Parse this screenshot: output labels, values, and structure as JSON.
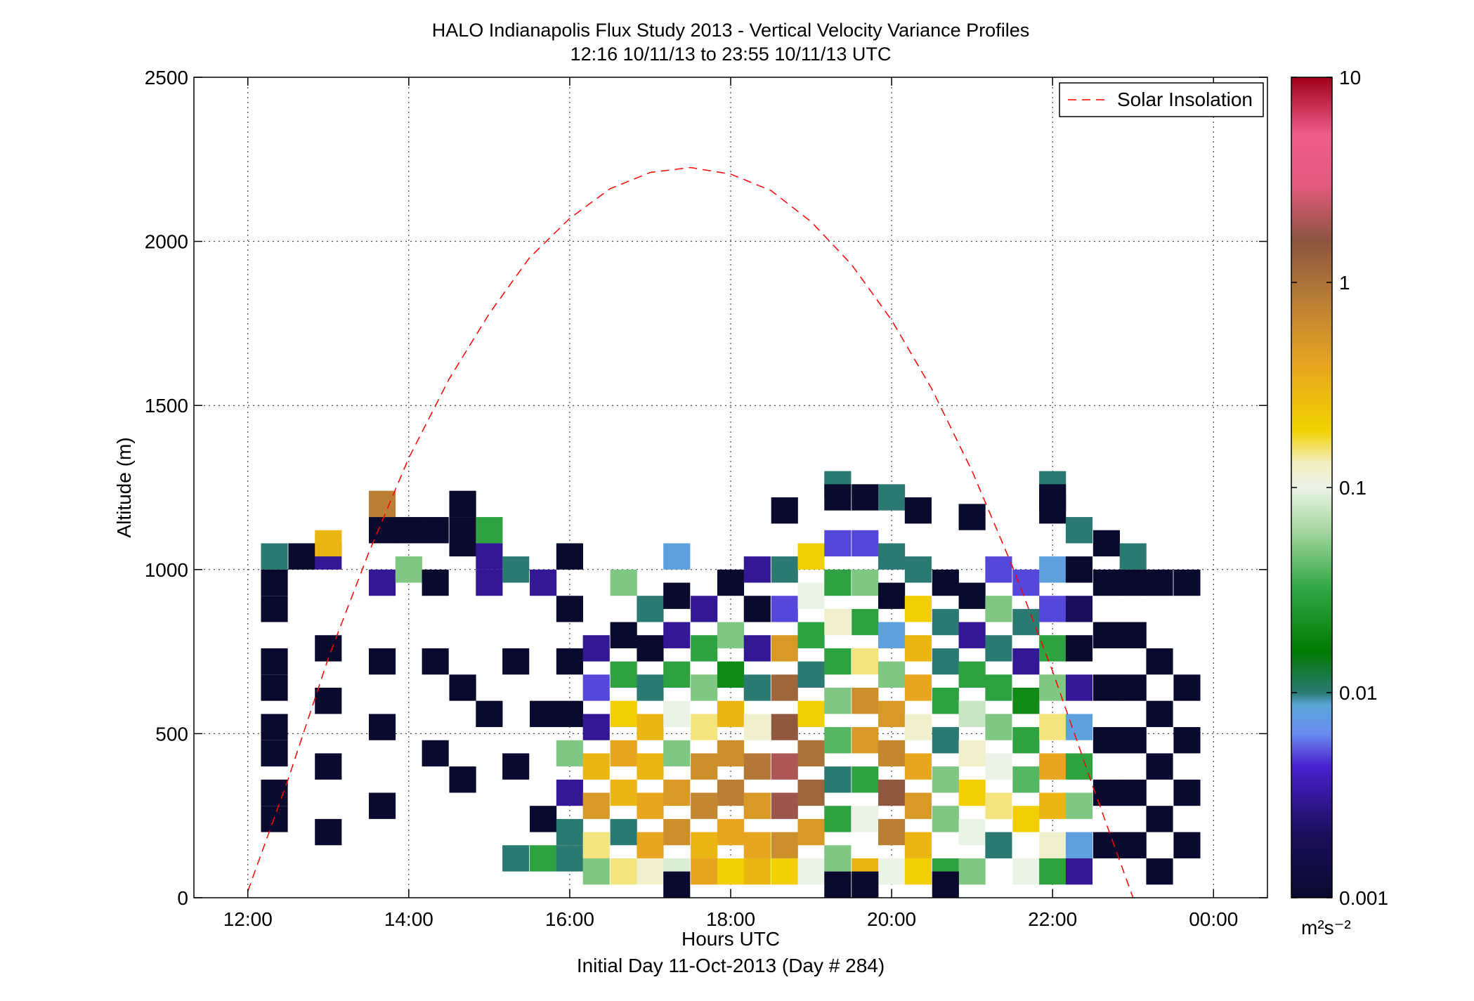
{
  "chart_data": {
    "type": "heatmap",
    "title": "HALO Indianapolis Flux Study 2013 - Vertical Velocity Variance Profiles",
    "subtitle": "12:16 10/11/13 to 23:55 10/11/13  UTC",
    "xlabel": "Hours UTC",
    "xlabel2": "Initial Day 11-Oct-2013 (Day # 284)",
    "ylabel": "Altitude (m)",
    "xlim": [
      11.33,
      24.67
    ],
    "ylim": [
      0,
      2500
    ],
    "x_ticks": [
      12,
      14,
      16,
      18,
      20,
      22,
      24
    ],
    "x_tick_labels": [
      "12:00",
      "14:00",
      "16:00",
      "18:00",
      "20:00",
      "22:00",
      "00:00"
    ],
    "y_ticks": [
      0,
      500,
      1000,
      1500,
      2000,
      2500
    ],
    "y_tick_labels": [
      "0",
      "500",
      "1000",
      "1500",
      "2000",
      "2500"
    ],
    "grid": true,
    "legend": {
      "position": "top-right",
      "entries": [
        "Solar Insolation"
      ]
    },
    "colorbar": {
      "scale": "log",
      "range": [
        0.001,
        10
      ],
      "ticks": [
        0.001,
        0.01,
        0.1,
        1,
        10
      ],
      "tick_labels": [
        "0.001",
        "0.01",
        "0.1",
        "1",
        "10"
      ],
      "units": "m²s⁻²"
    },
    "cell": {
      "dx_hours": 0.333,
      "dz_m": 80
    },
    "series": [
      {
        "name": "Solar Insolation",
        "type": "line",
        "style": "dashed",
        "color": "#ff0000",
        "x": [
          12.0,
          12.5,
          13.0,
          13.5,
          14.0,
          14.5,
          15.0,
          15.5,
          16.0,
          16.5,
          17.0,
          17.5,
          18.0,
          18.5,
          19.0,
          19.5,
          20.0,
          20.5,
          21.0,
          21.5,
          22.0,
          22.5,
          23.0
        ],
        "y": [
          20,
          360,
          730,
          1050,
          1340,
          1580,
          1780,
          1950,
          2070,
          2160,
          2210,
          2225,
          2205,
          2155,
          2060,
          1930,
          1760,
          1550,
          1300,
          1010,
          690,
          340,
          0
        ]
      }
    ],
    "cells": [
      [
        12.33,
        1040,
        0.01
      ],
      [
        12.67,
        1040,
        0.001
      ],
      [
        13.0,
        1040,
        0.003
      ],
      [
        13.67,
        1120,
        0.001
      ],
      [
        14.0,
        1120,
        0.001
      ],
      [
        14.33,
        1120,
        0.001
      ],
      [
        14.67,
        1120,
        0.001
      ],
      [
        13.67,
        1200,
        0.8
      ],
      [
        14.67,
        1200,
        0.001
      ],
      [
        13.0,
        1080,
        0.3
      ],
      [
        14.67,
        1080,
        0.001
      ],
      [
        15.0,
        1120,
        0.03
      ],
      [
        15.0,
        1040,
        0.003
      ],
      [
        16.0,
        1040,
        0.001
      ],
      [
        17.33,
        1040,
        0.008
      ],
      [
        19.33,
        1260,
        0.01
      ],
      [
        19.33,
        1220,
        0.001
      ],
      [
        19.67,
        1220,
        0.001
      ],
      [
        20.0,
        1220,
        0.01
      ],
      [
        18.67,
        1180,
        0.001
      ],
      [
        20.33,
        1180,
        0.001
      ],
      [
        21.0,
        1160,
        0.001
      ],
      [
        22.0,
        1260,
        0.01
      ],
      [
        22.0,
        1220,
        0.001
      ],
      [
        22.0,
        1180,
        0.001
      ],
      [
        22.33,
        1120,
        0.01
      ],
      [
        22.67,
        1080,
        0.001
      ],
      [
        23.0,
        1040,
        0.01
      ],
      [
        12.33,
        960,
        0.001
      ],
      [
        12.33,
        880,
        0.001
      ],
      [
        12.33,
        720,
        0.001
      ],
      [
        12.33,
        640,
        0.001
      ],
      [
        12.33,
        520,
        0.001
      ],
      [
        12.33,
        440,
        0.001
      ],
      [
        12.33,
        320,
        0.001
      ],
      [
        12.33,
        240,
        0.001
      ],
      [
        13.0,
        760,
        0.001
      ],
      [
        13.0,
        600,
        0.001
      ],
      [
        13.0,
        400,
        0.001
      ],
      [
        13.0,
        200,
        0.001
      ],
      [
        13.67,
        960,
        0.003
      ],
      [
        13.67,
        720,
        0.001
      ],
      [
        13.67,
        520,
        0.001
      ],
      [
        13.67,
        280,
        0.001
      ],
      [
        14.0,
        1000,
        0.05
      ],
      [
        14.33,
        960,
        0.001
      ],
      [
        14.33,
        720,
        0.001
      ],
      [
        14.33,
        440,
        0.001
      ],
      [
        14.67,
        640,
        0.001
      ],
      [
        14.67,
        360,
        0.001
      ],
      [
        15.0,
        960,
        0.003
      ],
      [
        15.0,
        560,
        0.001
      ],
      [
        15.33,
        1000,
        0.01
      ],
      [
        15.33,
        720,
        0.001
      ],
      [
        15.33,
        400,
        0.001
      ],
      [
        15.33,
        120,
        0.01
      ],
      [
        15.67,
        960,
        0.003
      ],
      [
        15.67,
        560,
        0.001
      ],
      [
        15.67,
        240,
        0.001
      ],
      [
        15.67,
        120,
        0.03
      ],
      [
        16.0,
        880,
        0.001
      ],
      [
        16.0,
        720,
        0.001
      ],
      [
        16.0,
        560,
        0.001
      ],
      [
        16.0,
        440,
        0.05
      ],
      [
        16.0,
        320,
        0.003
      ],
      [
        16.0,
        200,
        0.01
      ],
      [
        16.0,
        120,
        0.01
      ],
      [
        16.33,
        760,
        0.003
      ],
      [
        16.33,
        640,
        0.005
      ],
      [
        16.33,
        520,
        0.003
      ],
      [
        16.33,
        400,
        0.3
      ],
      [
        16.33,
        280,
        0.5
      ],
      [
        16.33,
        160,
        0.15
      ],
      [
        16.33,
        80,
        0.05
      ],
      [
        16.67,
        960,
        0.05
      ],
      [
        16.67,
        800,
        0.001
      ],
      [
        16.67,
        680,
        0.03
      ],
      [
        16.67,
        560,
        0.2
      ],
      [
        16.67,
        440,
        0.4
      ],
      [
        16.67,
        320,
        0.3
      ],
      [
        16.67,
        200,
        0.01
      ],
      [
        16.67,
        80,
        0.15
      ],
      [
        17.0,
        880,
        0.01
      ],
      [
        17.0,
        760,
        0.001
      ],
      [
        17.0,
        640,
        0.01
      ],
      [
        17.0,
        520,
        0.3
      ],
      [
        17.0,
        400,
        0.3
      ],
      [
        17.0,
        280,
        0.4
      ],
      [
        17.0,
        160,
        0.4
      ],
      [
        17.0,
        80,
        0.12
      ],
      [
        17.33,
        920,
        0.001
      ],
      [
        17.33,
        800,
        0.003
      ],
      [
        17.33,
        680,
        0.03
      ],
      [
        17.33,
        560,
        0.1
      ],
      [
        17.33,
        440,
        0.05
      ],
      [
        17.33,
        320,
        0.5
      ],
      [
        17.33,
        200,
        0.6
      ],
      [
        17.33,
        80,
        0.09
      ],
      [
        17.67,
        880,
        0.003
      ],
      [
        17.67,
        760,
        0.03
      ],
      [
        17.67,
        640,
        0.05
      ],
      [
        17.67,
        520,
        0.15
      ],
      [
        17.67,
        400,
        0.6
      ],
      [
        17.67,
        280,
        0.7
      ],
      [
        17.67,
        160,
        0.3
      ],
      [
        17.67,
        80,
        0.4
      ],
      [
        18.0,
        960,
        0.001
      ],
      [
        18.0,
        800,
        0.05
      ],
      [
        18.0,
        680,
        0.02
      ],
      [
        18.0,
        560,
        0.3
      ],
      [
        18.0,
        440,
        0.6
      ],
      [
        18.0,
        320,
        0.8
      ],
      [
        18.0,
        200,
        0.4
      ],
      [
        18.0,
        80,
        0.2
      ],
      [
        18.33,
        1000,
        0.003
      ],
      [
        18.33,
        880,
        0.001
      ],
      [
        18.33,
        760,
        0.003
      ],
      [
        18.33,
        640,
        0.01
      ],
      [
        18.33,
        520,
        0.12
      ],
      [
        18.33,
        400,
        0.9
      ],
      [
        18.33,
        280,
        0.5
      ],
      [
        18.33,
        160,
        0.4
      ],
      [
        18.33,
        80,
        0.3
      ],
      [
        18.67,
        1000,
        0.01
      ],
      [
        18.67,
        880,
        0.005
      ],
      [
        18.67,
        760,
        0.5
      ],
      [
        18.67,
        640,
        1.2
      ],
      [
        18.67,
        520,
        1.5
      ],
      [
        18.67,
        400,
        2.0
      ],
      [
        18.67,
        280,
        1.8
      ],
      [
        18.67,
        160,
        0.6
      ],
      [
        18.67,
        80,
        0.2
      ],
      [
        19.0,
        1040,
        0.2
      ],
      [
        19.0,
        920,
        0.1
      ],
      [
        19.0,
        800,
        0.03
      ],
      [
        19.0,
        680,
        0.01
      ],
      [
        19.0,
        560,
        0.2
      ],
      [
        19.0,
        440,
        1.0
      ],
      [
        19.0,
        320,
        1.2
      ],
      [
        19.0,
        200,
        0.5
      ],
      [
        19.0,
        80,
        0.1
      ],
      [
        19.33,
        1080,
        0.005
      ],
      [
        19.33,
        960,
        0.03
      ],
      [
        19.33,
        840,
        0.12
      ],
      [
        19.33,
        720,
        0.03
      ],
      [
        19.33,
        600,
        0.05
      ],
      [
        19.33,
        480,
        0.04
      ],
      [
        19.33,
        360,
        0.01
      ],
      [
        19.33,
        240,
        0.03
      ],
      [
        19.33,
        120,
        0.05
      ],
      [
        19.67,
        1080,
        0.005
      ],
      [
        19.67,
        960,
        0.05
      ],
      [
        19.67,
        840,
        0.03
      ],
      [
        19.67,
        720,
        0.15
      ],
      [
        19.67,
        600,
        0.6
      ],
      [
        19.67,
        480,
        0.5
      ],
      [
        19.67,
        360,
        0.03
      ],
      [
        19.67,
        240,
        0.1
      ],
      [
        19.67,
        80,
        0.3
      ],
      [
        20.0,
        1040,
        0.01
      ],
      [
        20.0,
        920,
        0.001
      ],
      [
        20.0,
        800,
        0.008
      ],
      [
        20.0,
        680,
        0.05
      ],
      [
        20.0,
        560,
        0.5
      ],
      [
        20.0,
        440,
        0.7
      ],
      [
        20.0,
        320,
        1.5
      ],
      [
        20.0,
        200,
        0.8
      ],
      [
        20.0,
        80,
        0.1
      ],
      [
        20.33,
        1000,
        0.01
      ],
      [
        20.33,
        880,
        0.2
      ],
      [
        20.33,
        760,
        0.3
      ],
      [
        20.33,
        640,
        0.4
      ],
      [
        20.33,
        520,
        0.12
      ],
      [
        20.33,
        400,
        0.4
      ],
      [
        20.33,
        280,
        0.5
      ],
      [
        20.33,
        160,
        0.3
      ],
      [
        20.33,
        80,
        0.2
      ],
      [
        20.67,
        960,
        0.001
      ],
      [
        20.67,
        840,
        0.01
      ],
      [
        20.67,
        720,
        0.01
      ],
      [
        20.67,
        600,
        0.03
      ],
      [
        20.67,
        480,
        0.01
      ],
      [
        20.67,
        360,
        0.05
      ],
      [
        20.67,
        240,
        0.05
      ],
      [
        20.67,
        80,
        0.03
      ],
      [
        21.0,
        920,
        0.001
      ],
      [
        21.0,
        800,
        0.003
      ],
      [
        21.0,
        680,
        0.03
      ],
      [
        21.0,
        560,
        0.08
      ],
      [
        21.0,
        440,
        0.12
      ],
      [
        21.0,
        320,
        0.2
      ],
      [
        21.0,
        200,
        0.1
      ],
      [
        21.0,
        80,
        0.05
      ],
      [
        21.33,
        1000,
        0.005
      ],
      [
        21.33,
        880,
        0.05
      ],
      [
        21.33,
        760,
        0.01
      ],
      [
        21.33,
        640,
        0.03
      ],
      [
        21.33,
        520,
        0.05
      ],
      [
        21.33,
        400,
        0.1
      ],
      [
        21.33,
        280,
        0.15
      ],
      [
        21.33,
        160,
        0.01
      ],
      [
        21.67,
        960,
        0.005
      ],
      [
        21.67,
        840,
        0.01
      ],
      [
        21.67,
        720,
        0.003
      ],
      [
        21.67,
        600,
        0.02
      ],
      [
        21.67,
        480,
        0.03
      ],
      [
        21.67,
        360,
        0.04
      ],
      [
        21.67,
        240,
        0.2
      ],
      [
        21.67,
        80,
        0.1
      ],
      [
        22.0,
        1000,
        0.008
      ],
      [
        22.0,
        880,
        0.005
      ],
      [
        22.0,
        760,
        0.03
      ],
      [
        22.0,
        640,
        0.05
      ],
      [
        22.0,
        520,
        0.15
      ],
      [
        22.0,
        400,
        0.4
      ],
      [
        22.0,
        280,
        0.3
      ],
      [
        22.0,
        160,
        0.12
      ],
      [
        22.0,
        80,
        0.03
      ],
      [
        22.33,
        1000,
        0.001
      ],
      [
        22.33,
        880,
        0.002
      ],
      [
        22.33,
        760,
        0.001
      ],
      [
        22.33,
        640,
        0.003
      ],
      [
        22.33,
        520,
        0.008
      ],
      [
        22.33,
        400,
        0.03
      ],
      [
        22.33,
        280,
        0.05
      ],
      [
        22.33,
        160,
        0.008
      ],
      [
        22.33,
        80,
        0.003
      ],
      [
        22.67,
        960,
        0.001
      ],
      [
        22.67,
        800,
        0.001
      ],
      [
        22.67,
        640,
        0.001
      ],
      [
        22.67,
        480,
        0.001
      ],
      [
        22.67,
        320,
        0.001
      ],
      [
        22.67,
        160,
        0.001
      ],
      [
        23.0,
        960,
        0.001
      ],
      [
        23.0,
        800,
        0.001
      ],
      [
        23.0,
        640,
        0.001
      ],
      [
        23.0,
        480,
        0.001
      ],
      [
        23.0,
        320,
        0.001
      ],
      [
        23.0,
        160,
        0.001
      ],
      [
        23.33,
        960,
        0.001
      ],
      [
        23.33,
        720,
        0.001
      ],
      [
        23.33,
        560,
        0.001
      ],
      [
        23.33,
        400,
        0.001
      ],
      [
        23.33,
        240,
        0.001
      ],
      [
        23.33,
        80,
        0.001
      ],
      [
        23.67,
        960,
        0.001
      ],
      [
        23.67,
        640,
        0.001
      ],
      [
        23.67,
        480,
        0.001
      ],
      [
        23.67,
        320,
        0.001
      ],
      [
        23.67,
        160,
        0.001
      ],
      [
        17.33,
        40,
        0.001
      ],
      [
        19.67,
        40,
        0.001
      ],
      [
        20.67,
        40,
        0.001
      ],
      [
        19.33,
        40,
        0.001
      ]
    ]
  }
}
